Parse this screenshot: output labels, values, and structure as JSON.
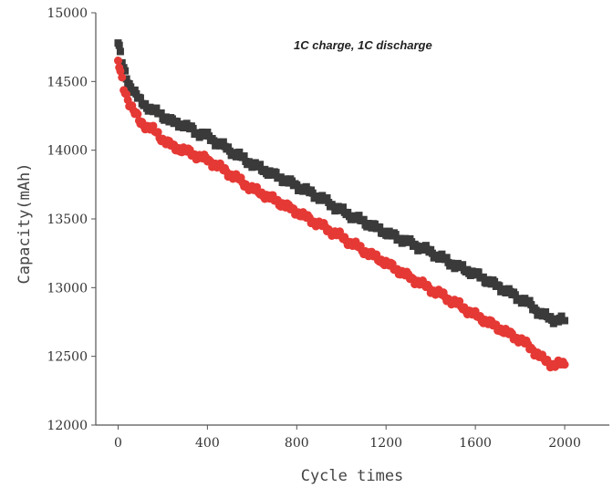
{
  "chart_data": {
    "type": "scatter",
    "title": "",
    "xlabel": "Cycle times",
    "ylabel": "Capacity(mAh)",
    "annotation": "1C charge, 1C discharge",
    "xlim": [
      -100,
      2200
    ],
    "ylim": [
      12000,
      15000
    ],
    "x_ticks": [
      0,
      400,
      800,
      1200,
      1600,
      2000
    ],
    "y_ticks": [
      12000,
      12500,
      13000,
      13500,
      14000,
      14500,
      15000
    ],
    "grid": false,
    "series": [
      {
        "color": "#3a3a3a",
        "marker": "square",
        "x": [
          0,
          10,
          25,
          50,
          75,
          100,
          150,
          200,
          250,
          300,
          350,
          400,
          500,
          600,
          700,
          800,
          900,
          1000,
          1100,
          1200,
          1300,
          1400,
          1500,
          1600,
          1700,
          1800,
          1850,
          1900,
          1950,
          2000
        ],
        "y": [
          14780,
          14700,
          14580,
          14480,
          14420,
          14350,
          14300,
          14250,
          14200,
          14180,
          14130,
          14100,
          14000,
          13900,
          13820,
          13740,
          13660,
          13560,
          13480,
          13400,
          13330,
          13260,
          13170,
          13100,
          13010,
          12920,
          12870,
          12800,
          12770,
          12760
        ]
      },
      {
        "color": "#e53935",
        "marker": "circle",
        "x": [
          0,
          10,
          25,
          50,
          75,
          100,
          150,
          200,
          250,
          300,
          350,
          400,
          500,
          600,
          700,
          800,
          900,
          1000,
          1100,
          1200,
          1300,
          1400,
          1500,
          1600,
          1700,
          1800,
          1850,
          1900,
          1950,
          2000
        ],
        "y": [
          14650,
          14560,
          14450,
          14350,
          14270,
          14200,
          14160,
          14080,
          14020,
          14000,
          13960,
          13930,
          13830,
          13720,
          13640,
          13550,
          13460,
          13370,
          13270,
          13180,
          13080,
          12990,
          12900,
          12800,
          12710,
          12620,
          12560,
          12480,
          12440,
          12440
        ]
      }
    ]
  }
}
